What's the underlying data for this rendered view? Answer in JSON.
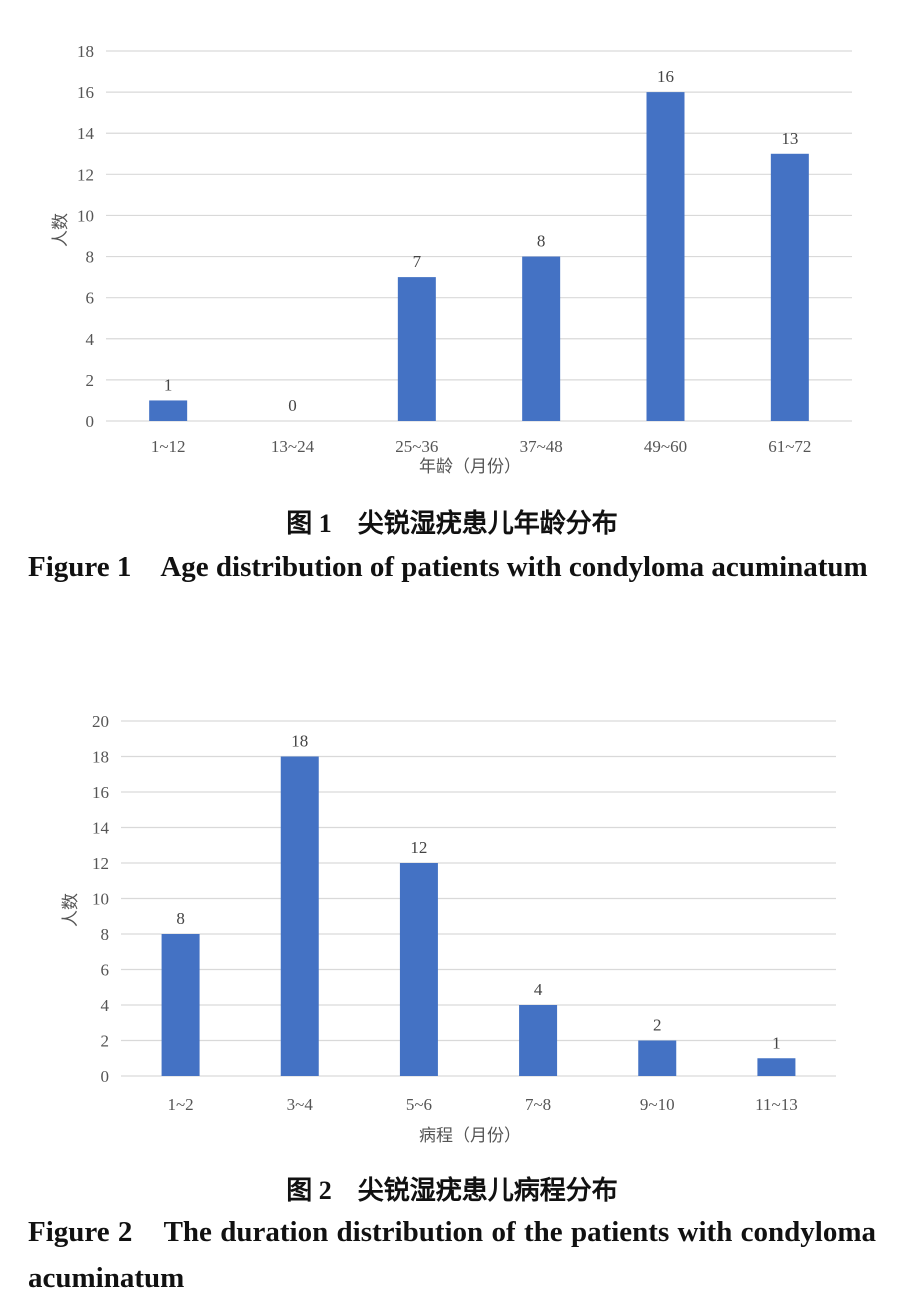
{
  "chart_data": [
    {
      "type": "bar",
      "categories": [
        "1~12",
        "13~24",
        "25~36",
        "37~48",
        "49~60",
        "61~72"
      ],
      "values": [
        1,
        0,
        7,
        8,
        16,
        13
      ],
      "xlabel": "年龄（月份）",
      "ylabel": "人数",
      "ylim": [
        0,
        18
      ],
      "yticks": [
        0,
        2,
        4,
        6,
        8,
        10,
        12,
        14,
        16,
        18
      ],
      "grid": true,
      "bar_color": "#4472C4"
    },
    {
      "type": "bar",
      "categories": [
        "1~2",
        "3~4",
        "5~6",
        "7~8",
        "9~10",
        "11~13"
      ],
      "values": [
        8,
        18,
        12,
        4,
        2,
        1
      ],
      "xlabel": "病程（月份）",
      "ylabel": "人数",
      "ylim": [
        0,
        20
      ],
      "yticks": [
        0,
        2,
        4,
        6,
        8,
        10,
        12,
        14,
        16,
        18,
        20
      ],
      "grid": true,
      "bar_color": "#4472C4"
    }
  ],
  "captions": [
    {
      "cn": "图 1　尖锐湿疣患儿年龄分布",
      "en": "Figure 1　Age distribution of patients with condyloma acuminatum"
    },
    {
      "cn": "图 2　尖锐湿疣患儿病程分布",
      "en": "Figure 2　The duration distribution of the patients with condyloma acuminatum"
    }
  ]
}
